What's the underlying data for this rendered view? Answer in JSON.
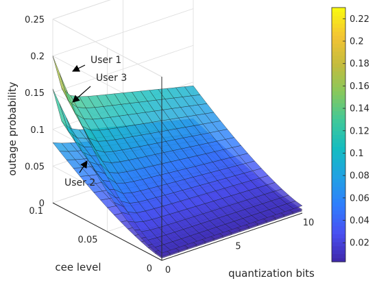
{
  "chart_data": {
    "type": "surface3d",
    "title": "",
    "xlabel": "quantization bits",
    "ylabel": "cee level",
    "zlabel": "outage probability",
    "xlim": [
      0,
      10
    ],
    "ylim": [
      0,
      0.1
    ],
    "zlim": [
      0,
      0.25
    ],
    "x_ticks": [
      "0",
      "5",
      "10"
    ],
    "y_ticks": [
      "0",
      "0.05",
      "0.1"
    ],
    "z_ticks": [
      "0",
      "0.05",
      "0.1",
      "0.15",
      "0.2",
      "0.25"
    ],
    "colorbar": {
      "range": [
        0.003,
        0.23
      ],
      "ticks": [
        "0.02",
        "0.04",
        "0.06",
        "0.08",
        "0.1",
        "0.12",
        "0.14",
        "0.16",
        "0.18",
        "0.2",
        "0.22"
      ],
      "colors": [
        "#3e26a8",
        "#4a4ff1",
        "#2f7dfd",
        "#21a1e4",
        "#14bcc1",
        "#3fc89a",
        "#87c85d",
        "#c4bc3e",
        "#f4c433",
        "#f9fb0e"
      ]
    },
    "grid": true,
    "series": [
      {
        "name": "User 1",
        "z_at_x0_y0.1": 0.2,
        "z_far_corner": 0.14,
        "z_near_corner": 0.01,
        "z_x10_y0.1": 0.095
      },
      {
        "name": "User 3",
        "z_at_x0_y0.1": 0.155,
        "z_far_corner": 0.095,
        "z_near_corner": 0.005,
        "z_x10_y0.1": 0.05
      },
      {
        "name": "User 2",
        "z_at_x0_y0.1": 0.082,
        "z_far_corner": 0.08,
        "z_near_corner": 0.003,
        "z_x10_y0.1": 0.028
      }
    ],
    "annotations": [
      {
        "text": "User 1",
        "series": "User 1"
      },
      {
        "text": "User 3",
        "series": "User 3"
      },
      {
        "text": "User 2",
        "series": "User 2"
      }
    ]
  }
}
